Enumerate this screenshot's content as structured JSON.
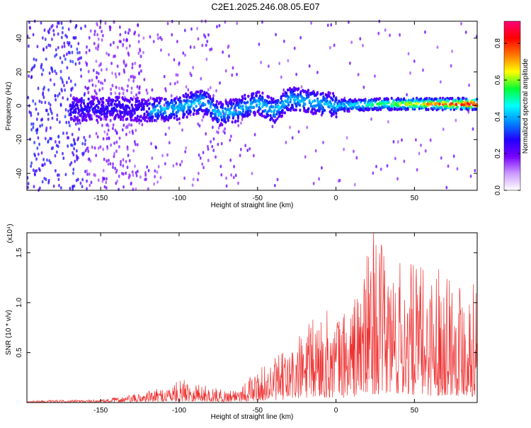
{
  "title": "C2E1.2025.246.08.05.E07",
  "chart_data": [
    {
      "type": "heatmap",
      "name": "spectrogram",
      "xlabel": "Height of straight line (km)",
      "ylabel": "Frequency (Hz)",
      "xlim": [
        -197,
        90
      ],
      "ylim": [
        -50,
        50
      ],
      "x_ticks": [
        -150,
        -100,
        -50,
        0,
        50
      ],
      "x_tick_labels": [
        "-150",
        "-100",
        "-50",
        "0",
        "50"
      ],
      "y_ticks": [
        40,
        20,
        0,
        -20,
        -40
      ],
      "y_tick_labels": [
        "40",
        "20",
        "0",
        "-20",
        "-40"
      ],
      "ridge": [
        {
          "x": -165,
          "y": -2
        },
        {
          "x": -140,
          "y": -1
        },
        {
          "x": -120,
          "y": -3
        },
        {
          "x": -100,
          "y": -1
        },
        {
          "x": -85,
          "y": 3
        },
        {
          "x": -75,
          "y": -5
        },
        {
          "x": -65,
          "y": -3
        },
        {
          "x": -50,
          "y": 2
        },
        {
          "x": -40,
          "y": -3
        },
        {
          "x": -30,
          "y": 4
        },
        {
          "x": -20,
          "y": 3
        },
        {
          "x": 0,
          "y": 0
        },
        {
          "x": 30,
          "y": 1
        },
        {
          "x": 60,
          "y": 1
        },
        {
          "x": 90,
          "y": 1
        }
      ],
      "grid": false
    },
    {
      "type": "line",
      "name": "snr",
      "xlabel": "Height of straight line (km)",
      "ylabel": "SNR (10 * v/v)",
      "multiplier_label": "(x10⁴)",
      "xlim": [
        -197,
        90
      ],
      "ylim": [
        0,
        1.7
      ],
      "x_ticks": [
        -150,
        -100,
        -50,
        0,
        50
      ],
      "x_tick_labels": [
        "-150",
        "-100",
        "-50",
        "0",
        "50"
      ],
      "y_ticks": [
        0.5,
        1.0,
        1.5
      ],
      "y_tick_labels": [
        "0.5",
        "1.0",
        "1.5"
      ],
      "color": "#ee3333",
      "envelope": [
        {
          "x": -197,
          "y": 0.02
        },
        {
          "x": -150,
          "y": 0.03
        },
        {
          "x": -130,
          "y": 0.08
        },
        {
          "x": -110,
          "y": 0.15
        },
        {
          "x": -95,
          "y": 0.25
        },
        {
          "x": -85,
          "y": 0.18
        },
        {
          "x": -70,
          "y": 0.12
        },
        {
          "x": -60,
          "y": 0.2
        },
        {
          "x": -45,
          "y": 0.38
        },
        {
          "x": -30,
          "y": 0.55
        },
        {
          "x": -20,
          "y": 0.75
        },
        {
          "x": -10,
          "y": 0.95
        },
        {
          "x": 0,
          "y": 0.9
        },
        {
          "x": 10,
          "y": 1.0
        },
        {
          "x": 24,
          "y": 1.7
        },
        {
          "x": 35,
          "y": 1.45
        },
        {
          "x": 50,
          "y": 1.4
        },
        {
          "x": 60,
          "y": 1.35
        },
        {
          "x": 70,
          "y": 1.45
        },
        {
          "x": 80,
          "y": 1.3
        },
        {
          "x": 90,
          "y": 1.2
        }
      ],
      "peak": {
        "x": 24,
        "y": 1.7
      }
    }
  ],
  "colorbar": {
    "label": "Normalized spectral amplitude",
    "ticks": [
      0.0,
      0.2,
      0.4,
      0.6,
      0.8
    ],
    "tick_labels": [
      "0.0",
      "0.2",
      "0.4",
      "0.6",
      "0.8"
    ],
    "range": [
      0,
      0.92
    ],
    "colors": [
      "#ffffff",
      "#cc99ff",
      "#7700ff",
      "#2200ff",
      "#0088ff",
      "#00ffff",
      "#00ff33",
      "#ffff00",
      "#ff7700",
      "#ff0000",
      "#ff0077"
    ]
  }
}
